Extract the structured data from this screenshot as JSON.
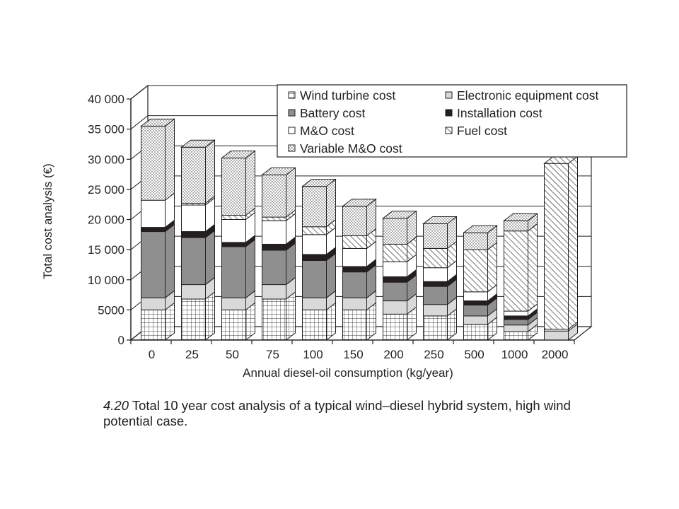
{
  "caption": {
    "number": "4.20",
    "text": "Total 10 year cost analysis of a typical wind–diesel hybrid system, high wind potential case."
  },
  "chart_data": {
    "type": "bar",
    "stacked": true,
    "style": "3d",
    "xlabel": "Annual diesel-oil consumption (kg/year)",
    "ylabel": "Total cost analysis (€)",
    "ylim": [
      0,
      40000
    ],
    "yticks": [
      0,
      5000,
      10000,
      15000,
      20000,
      25000,
      30000,
      35000,
      40000
    ],
    "ytick_labels": [
      "0",
      "5000",
      "10 000",
      "15 000",
      "20 000",
      "25 000",
      "30 000",
      "35 000",
      "40 000"
    ],
    "grid": true,
    "legend_position": "top-right",
    "categories": [
      "0",
      "25",
      "50",
      "75",
      "100",
      "150",
      "200",
      "250",
      "500",
      "1000",
      "2000"
    ],
    "series": [
      {
        "name": "Wind turbine cost",
        "pattern": "grid",
        "values": [
          5000,
          6800,
          5000,
          6800,
          5000,
          5000,
          4300,
          4000,
          2600,
          1400,
          0
        ]
      },
      {
        "name": "Electronic equipment cost",
        "pattern": "light-gray",
        "values": [
          2000,
          2400,
          2000,
          2400,
          2000,
          2000,
          2200,
          1900,
          1400,
          1100,
          1500
        ]
      },
      {
        "name": "Battery cost",
        "pattern": "mid-gray",
        "values": [
          11000,
          7800,
          8500,
          5700,
          6200,
          4300,
          3100,
          3000,
          1800,
          900,
          0
        ]
      },
      {
        "name": "Installation cost",
        "pattern": "black",
        "values": [
          700,
          1000,
          700,
          1000,
          1000,
          900,
          900,
          800,
          700,
          600,
          0
        ]
      },
      {
        "name": "M&O cost",
        "pattern": "white",
        "values": [
          4500,
          4400,
          3800,
          3900,
          3300,
          3000,
          2500,
          2300,
          1500,
          800,
          300
        ]
      },
      {
        "name": "Fuel cost",
        "pattern": "hatch",
        "values": [
          0,
          300,
          700,
          600,
          1300,
          2100,
          2900,
          3200,
          7000,
          13300,
          27500
        ]
      },
      {
        "name": "Variable M&O cost",
        "pattern": "dots",
        "values": [
          12300,
          9300,
          9500,
          7000,
          6700,
          4900,
          4300,
          4100,
          2800,
          1700,
          0
        ]
      }
    ]
  },
  "colors": {
    "ink": "#231f20",
    "mid_gray": "#8f8f8f",
    "light_gray": "#d9d9d9"
  }
}
